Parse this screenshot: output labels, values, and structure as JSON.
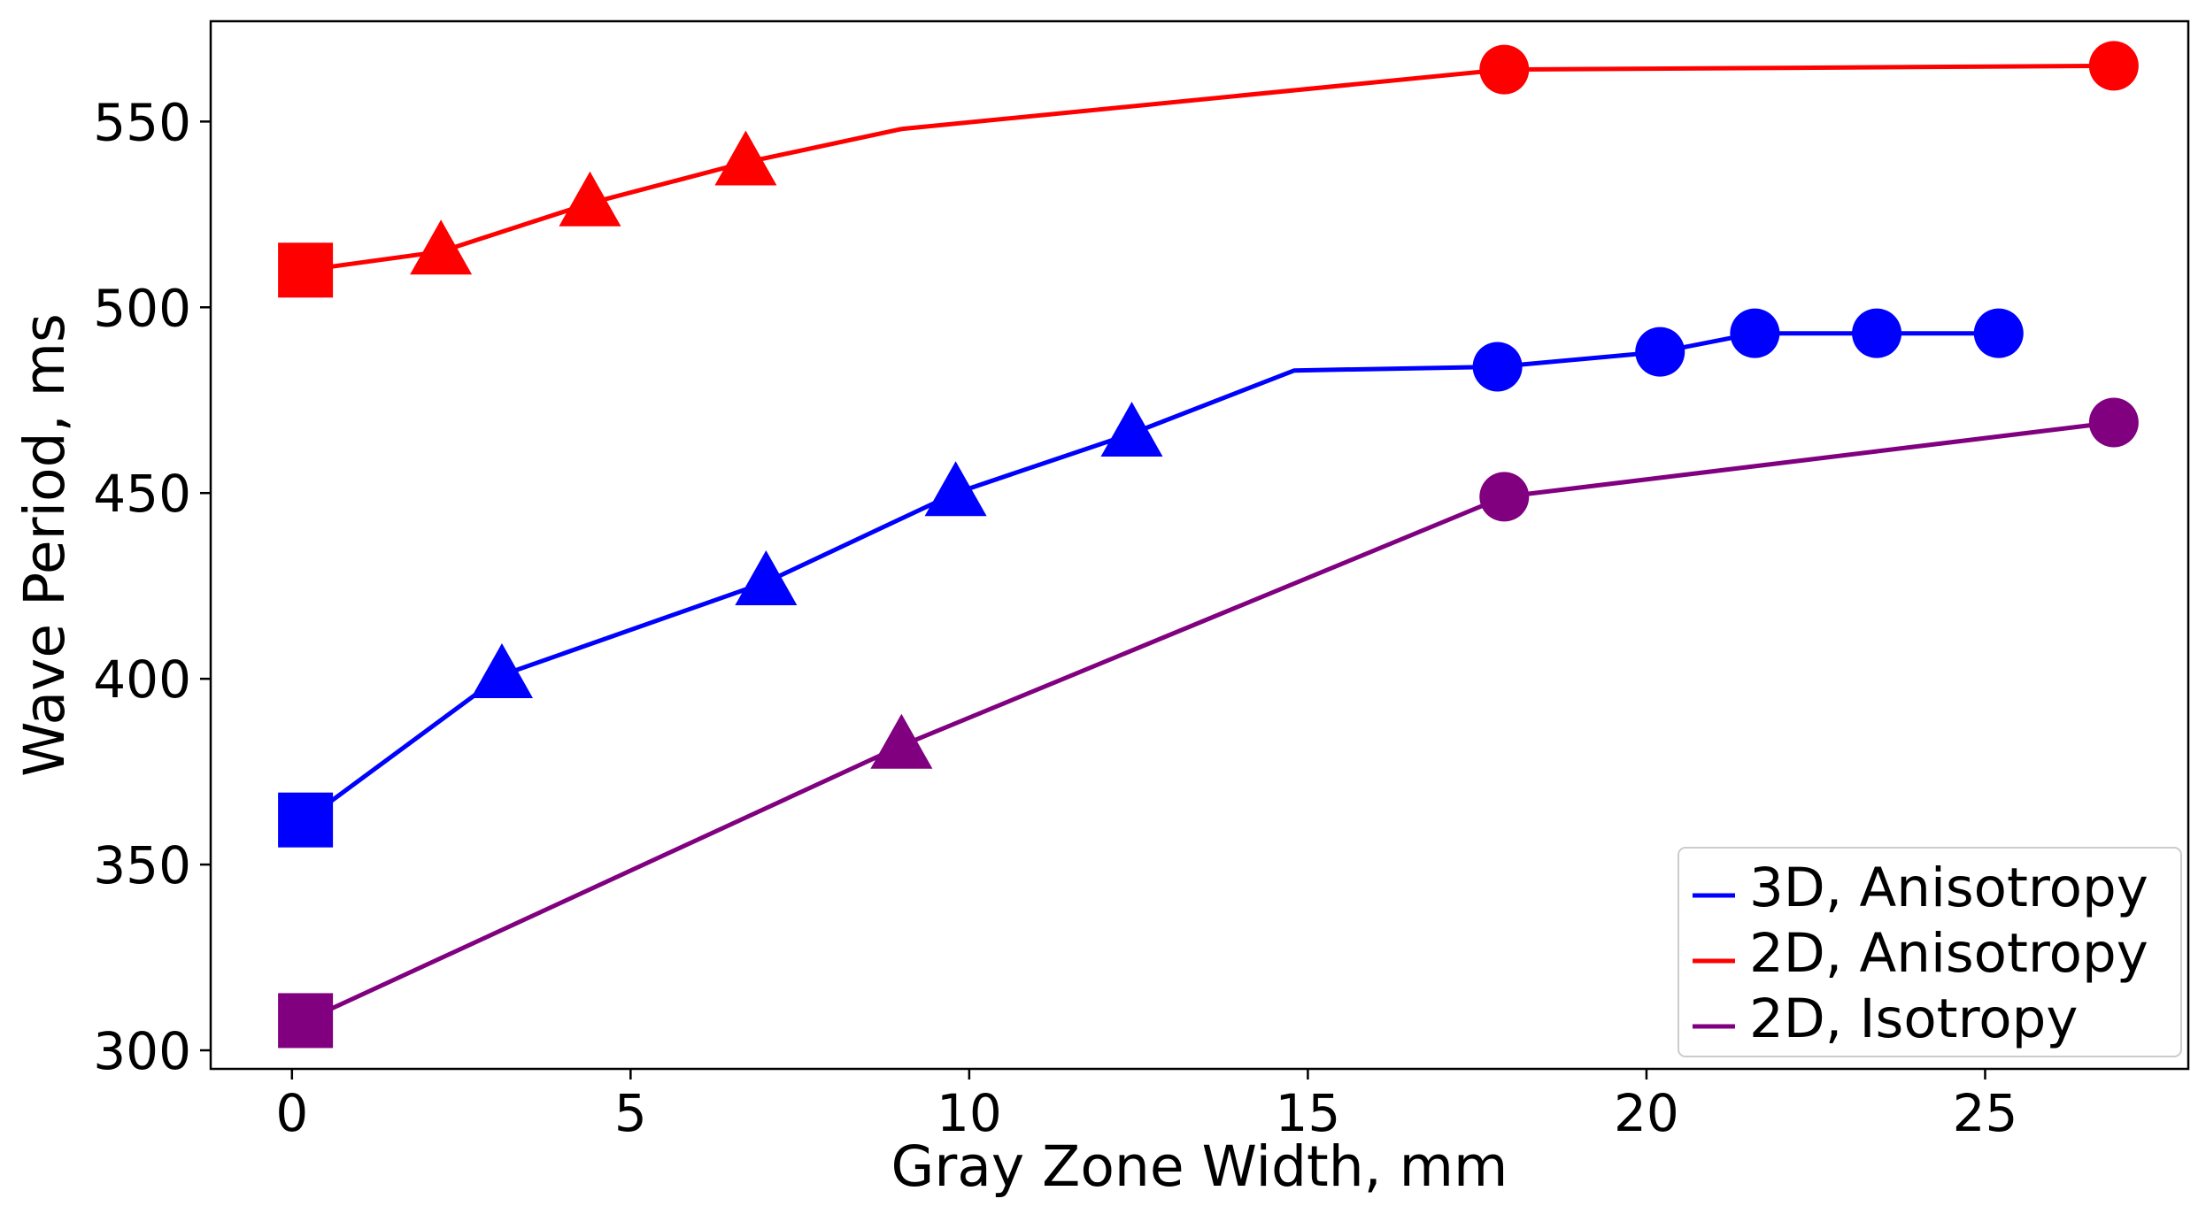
{
  "chart_data": {
    "type": "line",
    "title": "",
    "xlabel": "Gray Zone Width, mm",
    "ylabel": "Wave Period, ms",
    "xlim": [
      -1.2,
      28.0
    ],
    "ylim": [
      295,
      577
    ],
    "xticks": [
      0,
      5,
      10,
      15,
      20,
      25
    ],
    "yticks": [
      300,
      350,
      400,
      450,
      500,
      550
    ],
    "xtick_labels": [
      "0",
      "5",
      "10",
      "15",
      "20",
      "25"
    ],
    "ytick_labels": [
      "300",
      "350",
      "400",
      "450",
      "500",
      "550"
    ],
    "grid": false,
    "legend_position": "bottom-right",
    "series": [
      {
        "name": "3D, Anisotropy",
        "color": "#0000ff",
        "points": [
          {
            "x": 0.2,
            "y": 362,
            "marker": "square"
          },
          {
            "x": 3.1,
            "y": 401,
            "marker": "triangle"
          },
          {
            "x": 7.0,
            "y": 426,
            "marker": "triangle"
          },
          {
            "x": 9.8,
            "y": 450,
            "marker": "triangle"
          },
          {
            "x": 12.4,
            "y": 466,
            "marker": "triangle"
          },
          {
            "x": 14.8,
            "y": 483,
            "marker": "none"
          },
          {
            "x": 17.8,
            "y": 484,
            "marker": "circle"
          },
          {
            "x": 20.2,
            "y": 488,
            "marker": "circle"
          },
          {
            "x": 21.6,
            "y": 493,
            "marker": "circle"
          },
          {
            "x": 23.4,
            "y": 493,
            "marker": "circle"
          },
          {
            "x": 25.2,
            "y": 493,
            "marker": "circle"
          }
        ]
      },
      {
        "name": "2D, Anisotropy",
        "color": "#ff0000",
        "points": [
          {
            "x": 0.2,
            "y": 510,
            "marker": "square"
          },
          {
            "x": 2.2,
            "y": 515,
            "marker": "triangle"
          },
          {
            "x": 4.4,
            "y": 528,
            "marker": "triangle"
          },
          {
            "x": 6.7,
            "y": 539,
            "marker": "triangle"
          },
          {
            "x": 9.0,
            "y": 548,
            "marker": "none"
          },
          {
            "x": 17.9,
            "y": 564,
            "marker": "circle"
          },
          {
            "x": 26.9,
            "y": 565,
            "marker": "circle"
          }
        ]
      },
      {
        "name": "2D, Isotropy",
        "color": "#800080",
        "points": [
          {
            "x": 0.2,
            "y": 308,
            "marker": "square"
          },
          {
            "x": 9.0,
            "y": 382,
            "marker": "triangle"
          },
          {
            "x": 17.9,
            "y": 449,
            "marker": "circle"
          },
          {
            "x": 26.9,
            "y": 469,
            "marker": "circle"
          }
        ]
      }
    ]
  }
}
